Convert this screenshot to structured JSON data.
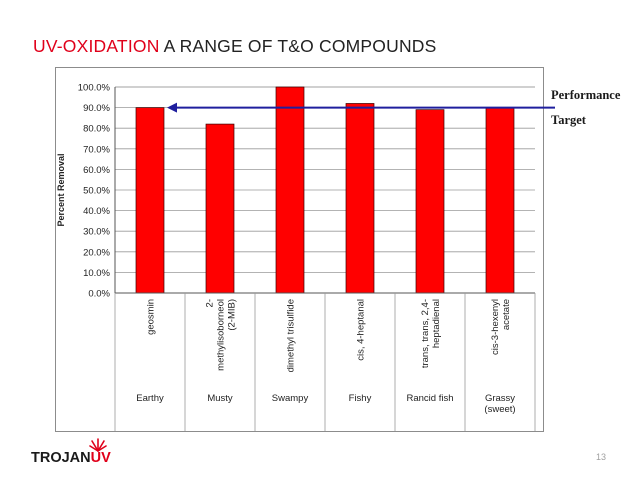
{
  "slide": {
    "title_highlight": "UV-OXIDATION",
    "title_rest": " A RANGE OF T&O COMPOUNDS",
    "page_number": "13",
    "side_label_line1": "Performance",
    "side_label_line2": "Target"
  },
  "logo": {
    "brand_text": "TROJAN",
    "brand_accent": "UV",
    "icon": "sunburst-icon"
  },
  "colors": {
    "accent": "#e0001a",
    "bar": "#ff0000",
    "arrow": "#1f1f9e"
  },
  "chart_data": {
    "type": "bar",
    "compounds": [
      "geosmin",
      "2-methylisoborneol (2-MIB)",
      "dimethyl trisulfide",
      "cis, 4-heptanal",
      "trans, trans, 2,4-heptadienal",
      "cis-3-hexenyl acetate"
    ],
    "compound_lines": [
      [
        "geosmin"
      ],
      [
        "2-",
        "methylisoborneol",
        "(2-MIB)"
      ],
      [
        "dimethyl trisulfide"
      ],
      [
        "cis, 4-heptanal"
      ],
      [
        "trans, trans, 2,4-",
        "heptadienal"
      ],
      [
        "cis-3-hexenyl",
        "acetate"
      ]
    ],
    "odors": [
      "Earthy",
      "Musty",
      "Swampy",
      "Fishy",
      "Rancid fish",
      "Grassy (sweet)"
    ],
    "odor_lines": [
      [
        "Earthy"
      ],
      [
        "Musty"
      ],
      [
        "Swampy"
      ],
      [
        "Fishy"
      ],
      [
        "Rancid fish"
      ],
      [
        "Grassy",
        "(sweet)"
      ]
    ],
    "values": [
      90,
      82,
      100,
      92,
      89,
      90
    ],
    "ylabel": "Percent Removal",
    "ylim": [
      0,
      100
    ],
    "yticks": [
      "0.0%",
      "10.0%",
      "20.0%",
      "30.0%",
      "40.0%",
      "50.0%",
      "60.0%",
      "70.0%",
      "80.0%",
      "90.0%",
      "100.0%"
    ],
    "grid": true,
    "performance_target": 90
  }
}
